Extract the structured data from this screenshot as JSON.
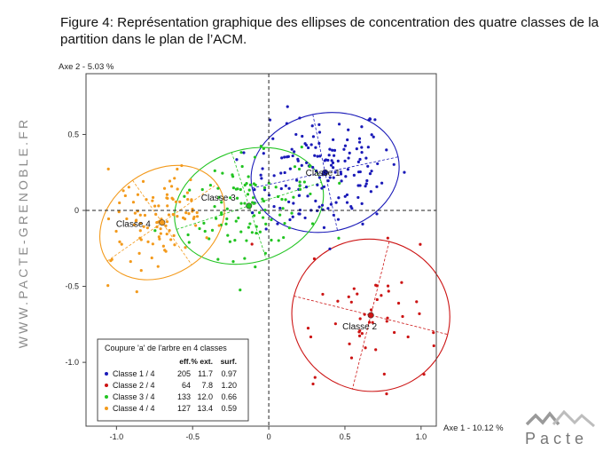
{
  "page": {
    "title": "Figure 4: Représentation graphique des ellipses de concentration des quatre classes de la partition dans le plan de l’ACM.",
    "sidebar_text": "WWW.PACTE-GRENOBLE.FR",
    "logo_text": "Pacte"
  },
  "chart_data": {
    "type": "scatter",
    "xlabel": "Axe 1  -  10.12 %",
    "ylabel": "Axe 2  -  5.03 %",
    "xlim": [
      -1.2,
      1.1
    ],
    "ylim": [
      -1.42,
      0.9
    ],
    "xticks": [
      -1.0,
      -0.5,
      0,
      0.5,
      1.0
    ],
    "xtick_labels": [
      "-1.0",
      "-0.5",
      "0",
      "0.5",
      "1.0"
    ],
    "yticks": [
      0.5,
      0,
      -0.5,
      -1.0
    ],
    "ytick_labels": [
      "0.5",
      "0",
      "-0.5",
      "-1.0"
    ],
    "grid": false,
    "legend": {
      "placement": "bottom-left",
      "title": "Coupure 'a' de l'arbre en  4 classes",
      "headers": [
        "eff.",
        "% ext.",
        "surf."
      ],
      "rows": [
        {
          "label": "Classe  1 /  4",
          "eff": "205",
          "ext": "11.7",
          "surf": "0.97"
        },
        {
          "label": "Classe  2 /  4",
          "eff": "64",
          "ext": "7.8",
          "surf": "1.20"
        },
        {
          "label": "Classe  3 /  4",
          "eff": "133",
          "ext": "12.0",
          "surf": "0.66"
        },
        {
          "label": "Classe  4 /  4",
          "eff": "127",
          "ext": "13.4",
          "surf": "0.59"
        }
      ]
    },
    "series": [
      {
        "name": "Classe  1",
        "color": "#1a1ab8",
        "center": [
          0.37,
          0.25
        ],
        "axes": [
          0.49,
          0.39
        ],
        "angle_deg": 12,
        "n": 205,
        "spread": [
          0.24,
          0.19
        ]
      },
      {
        "name": "Classe  2",
        "color": "#cc1414",
        "center": [
          0.67,
          -0.69
        ],
        "axes": [
          0.52,
          0.5
        ],
        "angle_deg": -14,
        "n": 64,
        "spread": [
          0.25,
          0.23
        ]
      },
      {
        "name": "Classe  3",
        "color": "#22c422",
        "center": [
          -0.13,
          0.03
        ],
        "axes": [
          0.5,
          0.37
        ],
        "angle_deg": 18,
        "n": 133,
        "spread": [
          0.22,
          0.15
        ]
      },
      {
        "name": "Classe  4",
        "color": "#f39a1c",
        "center": [
          -0.7,
          -0.08
        ],
        "axes": [
          0.44,
          0.34
        ],
        "angle_deg": 35,
        "n": 127,
        "spread": [
          0.2,
          0.15
        ]
      }
    ]
  }
}
